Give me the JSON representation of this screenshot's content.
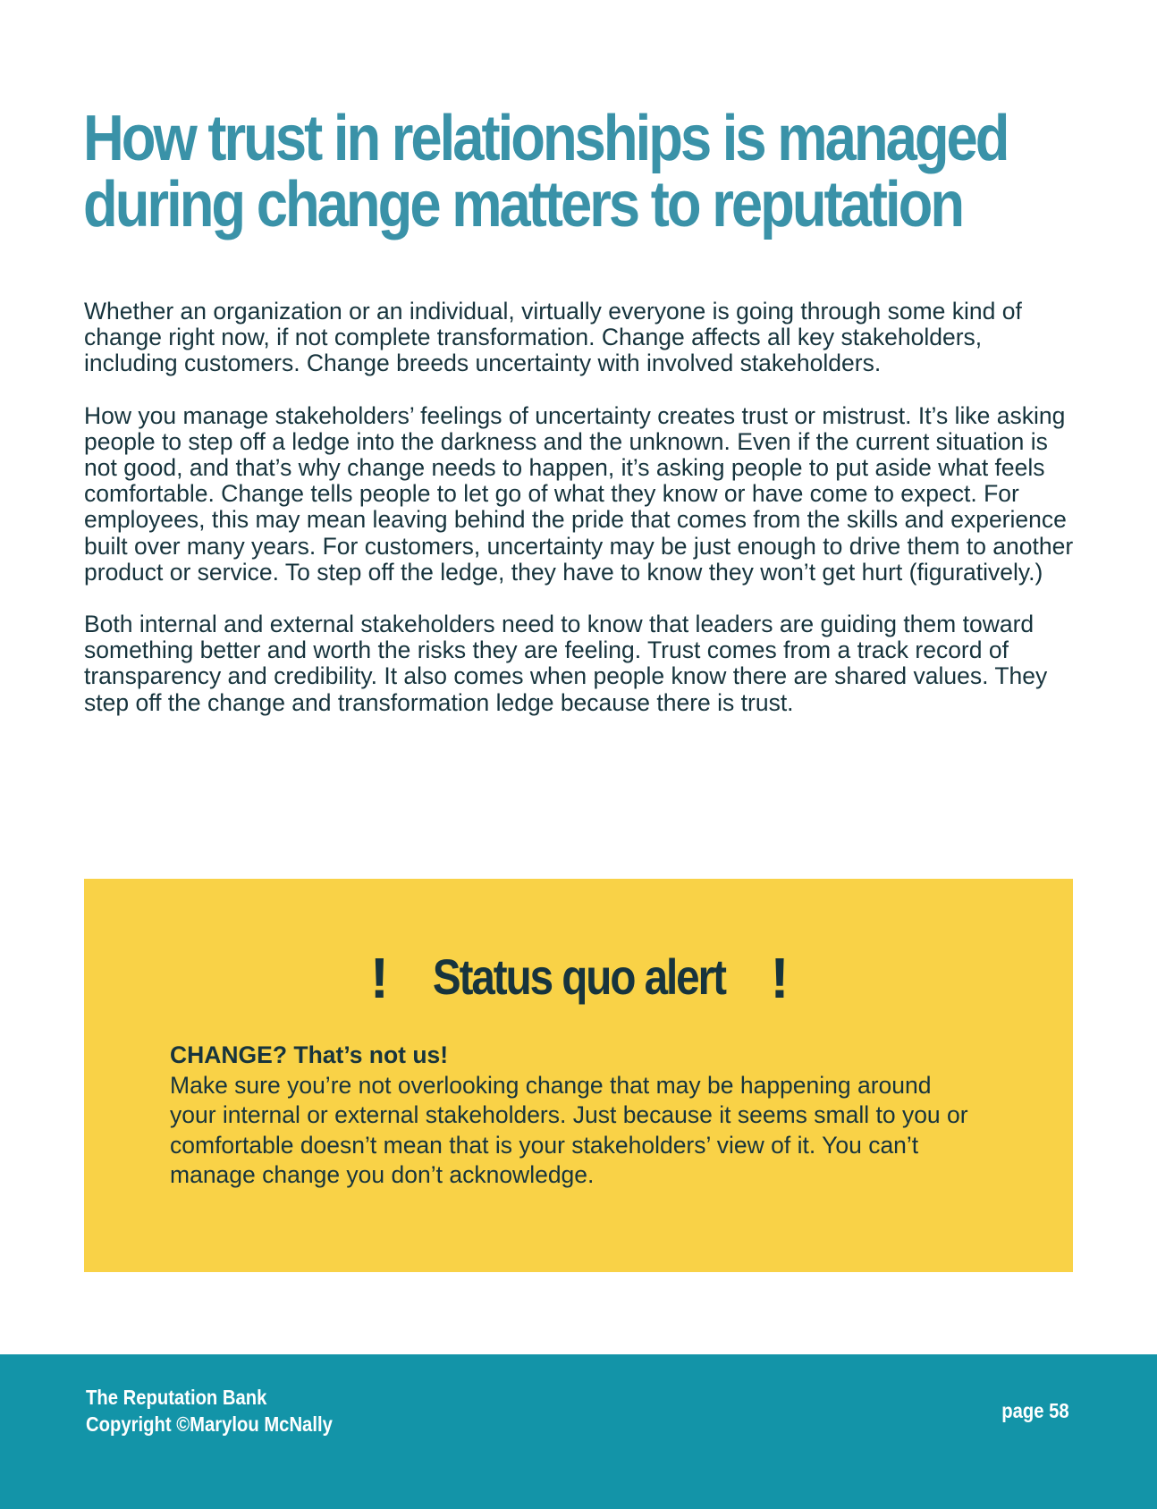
{
  "heading": {
    "line1": "How trust in relationships is managed",
    "line2": "during change matters to reputation"
  },
  "body": {
    "paragraph1": "Whether an organization or an individual, virtually everyone is going through some kind of change right now, if not complete transformation. Change affects all key stakeholders, including customers. Change breeds uncertainty with involved stakeholders.",
    "paragraph2": "How you manage stakeholders’ feelings of uncertainty creates trust or mistrust. It’s like asking people to step off a ledge into the darkness and the unknown. Even if the current situation is not good, and that’s why change needs to happen, it’s asking people to put aside what feels comfortable. Change tells people to let go of what they know or have come to expect. For employees, this may mean leaving behind the pride that comes from the skills and experience built over many years. For customers, uncertainty may be just enough to drive them to another product or service. To step off the ledge, they have to know they won’t get hurt (figuratively.)",
    "paragraph3": "Both internal and external stakeholders need to know that leaders are guiding them toward something better and worth the risks they are feeling. Trust comes from a track record of transparency and credibility. It also comes when people know there are shared values. They step off the change and transformation ledge because there is trust."
  },
  "alert": {
    "icon_left": "!",
    "title": "Status quo alert",
    "icon_right": "!",
    "lead": "CHANGE? That’s not us!",
    "text": "Make sure you’re not overlooking change that may be happening around your internal or external stakeholders. Just because it seems small to you or comfortable doesn’t mean that is your stakeholders’ view of it. You can’t manage change you don’t acknowledge."
  },
  "footer": {
    "book_title": "The Reputation Bank",
    "copyright": "Copyright ©Marylou McNally",
    "page_label": "page 58"
  },
  "colors": {
    "heading": "#3a92a8",
    "text": "#17343d",
    "alert_background": "#f9d247",
    "footer_background": "#1394a8",
    "footer_text": "#ffffff"
  }
}
